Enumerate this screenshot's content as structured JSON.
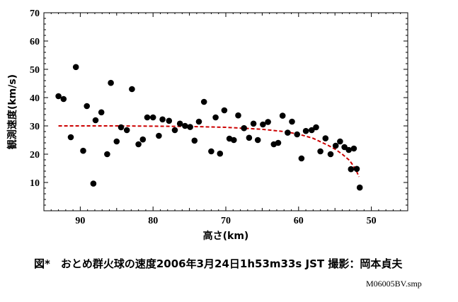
{
  "caption": "図*　おとめ群火球の速度2006年3月24日1h53m33s JST 撮影：岡本貞夫",
  "filename": "M06005BV.smp",
  "colors": {
    "points": "#000000",
    "fit": "#cc0000",
    "frame": "#000000"
  },
  "chart_data": {
    "type": "scatter",
    "title": "",
    "xlabel": "高さ(km)",
    "ylabel": "観測速度(km/s)",
    "xlim": [
      95,
      45
    ],
    "ylim": [
      0,
      70
    ],
    "x_reversed": true,
    "xticks": [
      90,
      80,
      70,
      60,
      50
    ],
    "yticks": [
      10,
      20,
      30,
      40,
      50,
      60,
      70
    ],
    "grid": false,
    "series": [
      {
        "type": "scatter",
        "points": [
          [
            93.0,
            40.5
          ],
          [
            92.3,
            39.5
          ],
          [
            91.3,
            26.0
          ],
          [
            90.6,
            50.8
          ],
          [
            89.6,
            21.2
          ],
          [
            89.1,
            37.0
          ],
          [
            88.2,
            9.6
          ],
          [
            87.9,
            32.0
          ],
          [
            87.1,
            34.8
          ],
          [
            86.3,
            20.0
          ],
          [
            85.8,
            45.2
          ],
          [
            85.0,
            24.5
          ],
          [
            84.4,
            29.5
          ],
          [
            83.6,
            28.5
          ],
          [
            82.9,
            43.0
          ],
          [
            82.0,
            23.5
          ],
          [
            81.4,
            25.2
          ],
          [
            80.8,
            33.0
          ],
          [
            80.0,
            33.0
          ],
          [
            79.2,
            26.5
          ],
          [
            78.7,
            32.3
          ],
          [
            77.8,
            31.8
          ],
          [
            77.0,
            28.5
          ],
          [
            76.3,
            30.8
          ],
          [
            75.6,
            30.0
          ],
          [
            74.9,
            29.6
          ],
          [
            74.3,
            24.8
          ],
          [
            73.7,
            31.5
          ],
          [
            73.0,
            38.5
          ],
          [
            72.0,
            21.0
          ],
          [
            71.4,
            33.0
          ],
          [
            70.8,
            20.2
          ],
          [
            70.2,
            35.5
          ],
          [
            69.5,
            25.5
          ],
          [
            68.9,
            25.0
          ],
          [
            68.3,
            33.7
          ],
          [
            67.5,
            29.2
          ],
          [
            66.8,
            25.8
          ],
          [
            66.2,
            30.8
          ],
          [
            65.6,
            25.0
          ],
          [
            64.9,
            30.5
          ],
          [
            64.2,
            31.4
          ],
          [
            63.4,
            23.5
          ],
          [
            62.8,
            24.0
          ],
          [
            62.2,
            33.6
          ],
          [
            61.5,
            27.6
          ],
          [
            60.9,
            31.5
          ],
          [
            60.2,
            27.0
          ],
          [
            59.6,
            18.5
          ],
          [
            59.0,
            28.2
          ],
          [
            58.2,
            28.5
          ],
          [
            57.6,
            29.5
          ],
          [
            57.0,
            21.0
          ],
          [
            56.3,
            25.6
          ],
          [
            55.6,
            20.0
          ],
          [
            54.9,
            23.0
          ],
          [
            54.3,
            24.5
          ],
          [
            53.7,
            22.5
          ],
          [
            53.1,
            21.5
          ],
          [
            52.8,
            14.7
          ],
          [
            52.4,
            22.0
          ],
          [
            52.0,
            14.8
          ],
          [
            51.6,
            8.2
          ]
        ]
      },
      {
        "type": "line",
        "style": "dashed",
        "points": [
          [
            93.0,
            30.0
          ],
          [
            90.0,
            30.0
          ],
          [
            85.0,
            30.0
          ],
          [
            80.0,
            29.9
          ],
          [
            75.0,
            29.8
          ],
          [
            70.0,
            29.5
          ],
          [
            65.0,
            28.8
          ],
          [
            62.0,
            28.0
          ],
          [
            60.0,
            27.1
          ],
          [
            58.0,
            25.6
          ],
          [
            56.0,
            23.2
          ],
          [
            55.0,
            21.8
          ],
          [
            54.0,
            20.0
          ],
          [
            53.0,
            17.8
          ],
          [
            52.5,
            16.0
          ],
          [
            52.0,
            13.8
          ],
          [
            51.7,
            12.0
          ]
        ]
      }
    ]
  }
}
